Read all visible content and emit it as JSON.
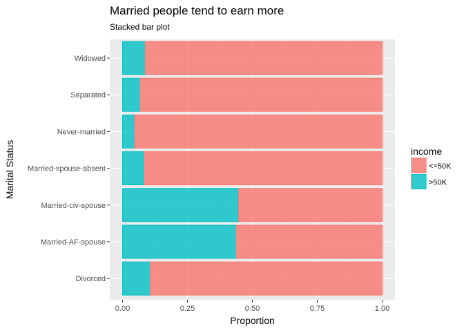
{
  "chart_data": {
    "type": "bar",
    "orientation": "horizontal",
    "stacked": true,
    "title": "Married people tend to earn more",
    "subtitle": "Stacked bar plot",
    "xlabel": "Proportion",
    "ylabel": "Marital Status",
    "xlim": [
      0,
      1
    ],
    "xticks": [
      "0.00",
      "0.25",
      "0.50",
      "0.75",
      "1.00"
    ],
    "grid": true,
    "categories": [
      "Widowed",
      "Separated",
      "Never-married",
      "Married-spouse-absent",
      "Married-civ-spouse",
      "Married-AF-spouse",
      "Divorced"
    ],
    "series": [
      {
        "name": ">50K",
        "color": "#00BFC4",
        "values": [
          0.086,
          0.065,
          0.046,
          0.081,
          0.447,
          0.435,
          0.104
        ]
      },
      {
        "name": "<=50K",
        "color": "#F8766D",
        "values": [
          0.914,
          0.935,
          0.954,
          0.919,
          0.553,
          0.565,
          0.896
        ]
      }
    ],
    "legend": {
      "title": "income",
      "placement": "right",
      "items": [
        {
          "label": "<=50K",
          "color": "#F8766D"
        },
        {
          "label": ">50K",
          "color": "#00BFC4"
        }
      ]
    }
  }
}
